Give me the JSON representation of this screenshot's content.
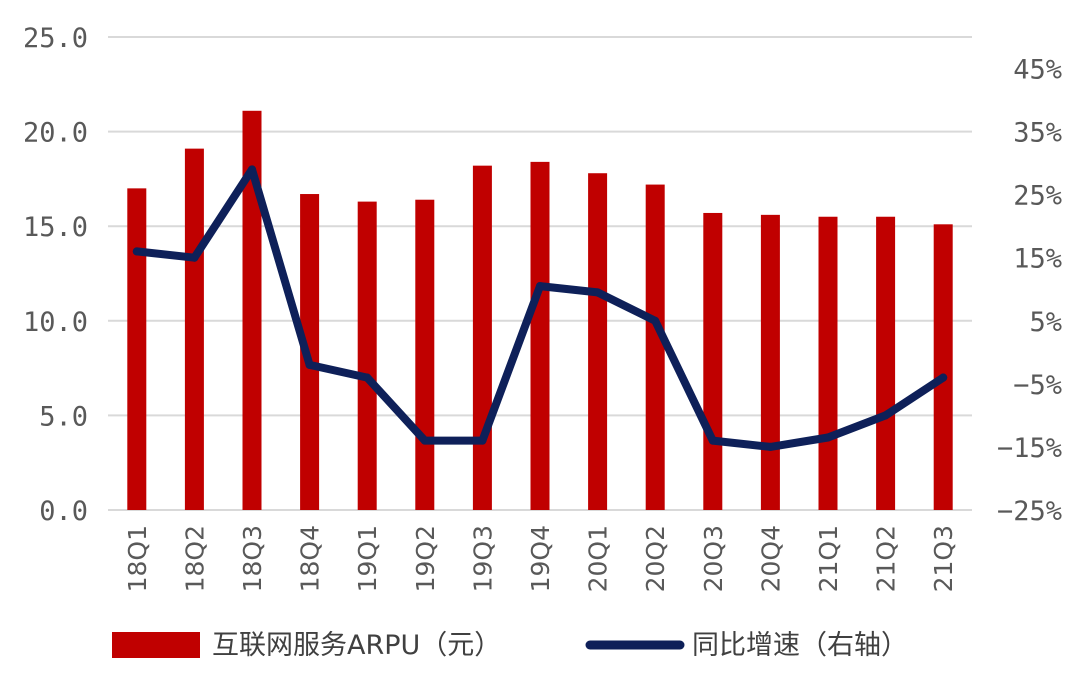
{
  "chart_data": {
    "type": "bar",
    "categories": [
      "18Q1",
      "18Q2",
      "18Q3",
      "18Q4",
      "19Q1",
      "19Q2",
      "19Q3",
      "19Q4",
      "20Q1",
      "20Q2",
      "20Q3",
      "20Q4",
      "21Q1",
      "21Q2",
      "21Q3"
    ],
    "series": [
      {
        "name": "互联网服务ARPU（元）",
        "type": "bar",
        "axis": "left",
        "color": "#C00000",
        "values": [
          17.0,
          19.1,
          21.1,
          16.7,
          16.3,
          16.4,
          18.2,
          18.4,
          17.8,
          17.2,
          15.7,
          15.6,
          15.5,
          15.5,
          15.1
        ]
      },
      {
        "name": "同比增速（右轴）",
        "type": "line",
        "axis": "right",
        "color": "#0E2059",
        "values": [
          16,
          15,
          29,
          -2,
          -4,
          -14,
          -14,
          10.5,
          9.5,
          5,
          -14,
          -15,
          -13.5,
          -10,
          -4
        ]
      }
    ],
    "left_axis": {
      "ylim": [
        0,
        25
      ],
      "ticks": [
        0,
        5,
        10,
        15,
        20,
        25
      ],
      "tick_labels": [
        "0.0",
        "5.0",
        "10.0",
        "15.0",
        "20.0",
        "25.0"
      ]
    },
    "right_axis": {
      "ylim": [
        -25,
        50
      ],
      "ticks": [
        -25,
        -15,
        -5,
        5,
        15,
        25,
        35,
        45
      ],
      "tick_labels": [
        "−25%",
        "−15%",
        "−5%",
        "5%",
        "15%",
        "25%",
        "35%",
        "45%"
      ]
    },
    "grid": true,
    "legend": "bottom"
  }
}
